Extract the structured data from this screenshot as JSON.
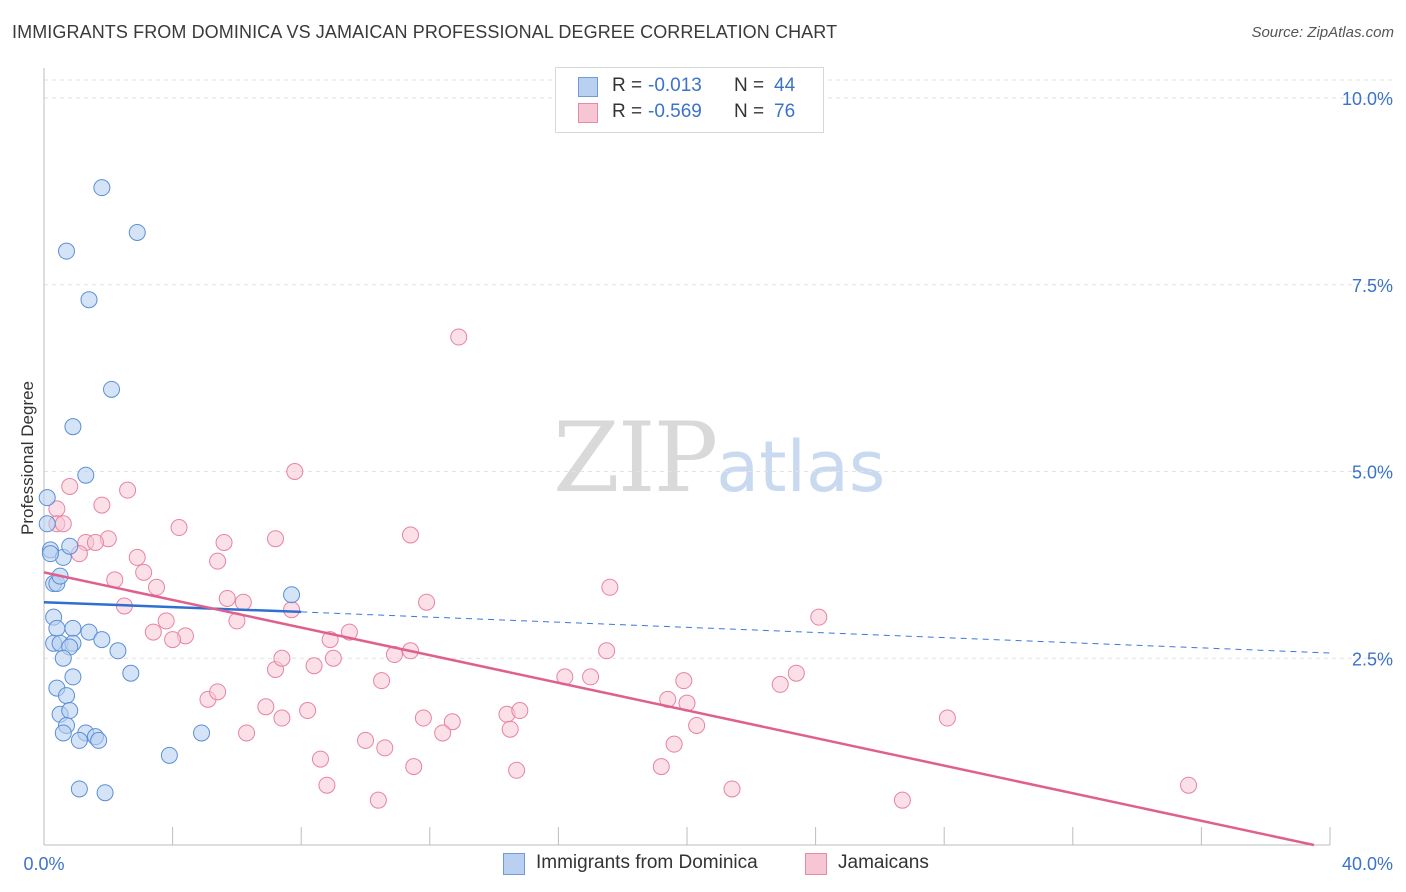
{
  "header": {
    "title": "IMMIGRANTS FROM DOMINICA VS JAMAICAN PROFESSIONAL DEGREE CORRELATION CHART",
    "source": "Source: ZipAtlas.com"
  },
  "watermark": {
    "zip": "ZIP",
    "atlas": "atlas"
  },
  "legend": {
    "r_label": "R =",
    "n_label": "N =",
    "rows": [
      {
        "r": "-0.013",
        "n": "44"
      },
      {
        "r": "-0.569",
        "n": "76"
      }
    ]
  },
  "chart_data": {
    "type": "scatter",
    "title": "IMMIGRANTS FROM DOMINICA VS JAMAICAN PROFESSIONAL DEGREE CORRELATION CHART",
    "xlabel": "",
    "ylabel": "Professional Degree",
    "xlim": [
      0,
      40
    ],
    "ylim": [
      0,
      10.5
    ],
    "x_tick_labels": [
      "0.0%",
      "40.0%"
    ],
    "y_ticks": [
      2.5,
      5.0,
      7.5,
      10.0
    ],
    "y_tick_labels": [
      "2.5%",
      "5.0%",
      "7.5%",
      "10.0%"
    ],
    "grid": true,
    "legend_position": "top-center",
    "colors": {
      "series1": "#5b8fd6",
      "series2": "#e783a4",
      "series1_fill": "#b9d0f1",
      "series2_fill": "#f7c6d5",
      "axis_text": "#3b73c8"
    },
    "series": [
      {
        "name": "Immigrants from Dominica",
        "r": -0.013,
        "n": 44,
        "trend": {
          "x": [
            0,
            8
          ],
          "y": [
            3.25,
            3.12
          ],
          "dashed_to": [
            40,
            2.57
          ]
        },
        "points": [
          [
            1.8,
            8.8
          ],
          [
            2.9,
            8.2
          ],
          [
            0.7,
            7.95
          ],
          [
            1.4,
            7.3
          ],
          [
            2.1,
            6.1
          ],
          [
            0.9,
            5.6
          ],
          [
            1.3,
            4.95
          ],
          [
            0.1,
            4.65
          ],
          [
            0.1,
            4.3
          ],
          [
            0.2,
            3.95
          ],
          [
            0.6,
            3.85
          ],
          [
            0.8,
            4.0
          ],
          [
            0.3,
            3.5
          ],
          [
            0.4,
            3.5
          ],
          [
            0.3,
            3.05
          ],
          [
            0.4,
            2.9
          ],
          [
            0.3,
            2.7
          ],
          [
            0.5,
            2.7
          ],
          [
            0.9,
            2.9
          ],
          [
            1.4,
            2.85
          ],
          [
            0.9,
            2.7
          ],
          [
            0.8,
            2.65
          ],
          [
            0.6,
            2.5
          ],
          [
            1.8,
            2.75
          ],
          [
            2.3,
            2.6
          ],
          [
            2.7,
            2.3
          ],
          [
            0.9,
            2.25
          ],
          [
            0.4,
            2.1
          ],
          [
            0.7,
            2.0
          ],
          [
            0.5,
            1.75
          ],
          [
            0.8,
            1.8
          ],
          [
            0.7,
            1.6
          ],
          [
            0.6,
            1.5
          ],
          [
            1.3,
            1.5
          ],
          [
            1.1,
            1.4
          ],
          [
            1.6,
            1.45
          ],
          [
            1.7,
            1.4
          ],
          [
            4.9,
            1.5
          ],
          [
            3.9,
            1.2
          ],
          [
            1.1,
            0.75
          ],
          [
            1.9,
            0.7
          ],
          [
            7.7,
            3.35
          ],
          [
            0.2,
            3.9
          ],
          [
            0.5,
            3.6
          ]
        ]
      },
      {
        "name": "Jamaicans",
        "r": -0.569,
        "n": 76,
        "trend": {
          "x": [
            0,
            39.5
          ],
          "y": [
            3.65,
            0.0
          ]
        },
        "points": [
          [
            12.9,
            6.8
          ],
          [
            7.8,
            5.0
          ],
          [
            0.8,
            4.8
          ],
          [
            2.6,
            4.75
          ],
          [
            1.8,
            4.55
          ],
          [
            0.4,
            4.5
          ],
          [
            0.4,
            4.3
          ],
          [
            4.2,
            4.25
          ],
          [
            11.4,
            4.15
          ],
          [
            2.0,
            4.1
          ],
          [
            7.2,
            4.1
          ],
          [
            1.3,
            4.05
          ],
          [
            1.6,
            4.05
          ],
          [
            5.6,
            4.05
          ],
          [
            1.1,
            3.9
          ],
          [
            2.9,
            3.85
          ],
          [
            5.4,
            3.8
          ],
          [
            3.1,
            3.65
          ],
          [
            2.2,
            3.55
          ],
          [
            3.5,
            3.45
          ],
          [
            17.6,
            3.45
          ],
          [
            5.7,
            3.3
          ],
          [
            6.2,
            3.25
          ],
          [
            11.9,
            3.25
          ],
          [
            2.5,
            3.2
          ],
          [
            7.7,
            3.15
          ],
          [
            3.8,
            3.0
          ],
          [
            6.0,
            3.0
          ],
          [
            24.1,
            3.05
          ],
          [
            3.4,
            2.85
          ],
          [
            4.4,
            2.8
          ],
          [
            4.0,
            2.75
          ],
          [
            8.9,
            2.75
          ],
          [
            9.5,
            2.85
          ],
          [
            10.9,
            2.55
          ],
          [
            11.4,
            2.6
          ],
          [
            17.5,
            2.6
          ],
          [
            7.2,
            2.35
          ],
          [
            7.4,
            2.5
          ],
          [
            8.4,
            2.4
          ],
          [
            9.0,
            2.5
          ],
          [
            10.5,
            2.2
          ],
          [
            16.2,
            2.25
          ],
          [
            17.0,
            2.25
          ],
          [
            19.9,
            2.2
          ],
          [
            23.4,
            2.3
          ],
          [
            22.9,
            2.15
          ],
          [
            5.1,
            1.95
          ],
          [
            5.4,
            2.05
          ],
          [
            6.9,
            1.85
          ],
          [
            7.4,
            1.7
          ],
          [
            8.2,
            1.8
          ],
          [
            11.8,
            1.7
          ],
          [
            12.7,
            1.65
          ],
          [
            14.4,
            1.75
          ],
          [
            14.8,
            1.8
          ],
          [
            19.4,
            1.95
          ],
          [
            20.0,
            1.9
          ],
          [
            20.3,
            1.6
          ],
          [
            28.1,
            1.7
          ],
          [
            6.3,
            1.5
          ],
          [
            12.4,
            1.5
          ],
          [
            14.5,
            1.55
          ],
          [
            10.0,
            1.4
          ],
          [
            10.6,
            1.3
          ],
          [
            19.6,
            1.35
          ],
          [
            8.6,
            1.15
          ],
          [
            11.5,
            1.05
          ],
          [
            14.7,
            1.0
          ],
          [
            19.2,
            1.05
          ],
          [
            8.8,
            0.8
          ],
          [
            21.4,
            0.75
          ],
          [
            10.4,
            0.6
          ],
          [
            26.7,
            0.6
          ],
          [
            35.6,
            0.8
          ],
          [
            0.6,
            4.3
          ]
        ]
      }
    ]
  },
  "bottom_legend": [
    {
      "label": "Immigrants from Dominica"
    },
    {
      "label": "Jamaicans"
    }
  ]
}
